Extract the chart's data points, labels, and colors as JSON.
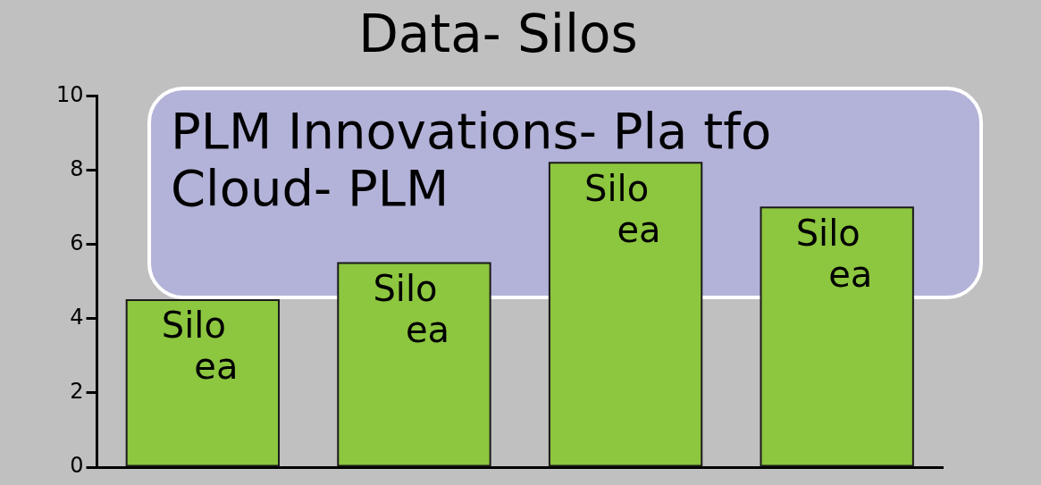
{
  "chart_data": {
    "type": "bar",
    "title": "Data- Silos",
    "categories": [
      "Silo ea",
      "Silo ea",
      "Silo ea",
      "Silo ea"
    ],
    "values": [
      4.5,
      5.5,
      8.2,
      7.0
    ],
    "color": "#8dc63f",
    "ylim": [
      0,
      10
    ],
    "yticks": [
      0,
      2,
      4,
      6,
      8,
      10
    ],
    "grid": false,
    "legend": false,
    "annotations": [
      "PLM Innovations- Pla tfo\nCloud- PLM"
    ]
  }
}
